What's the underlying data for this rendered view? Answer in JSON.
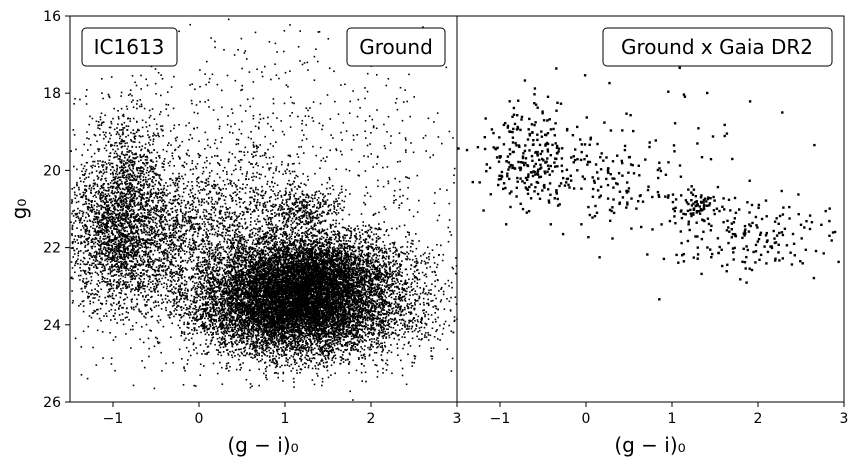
{
  "chart_data": [
    {
      "type": "scatter",
      "panel": "left",
      "tags": [
        "IC1613",
        "Ground"
      ],
      "xlabel": "(g − i)₀",
      "ylabel": "g₀",
      "xlim": [
        -1.5,
        3
      ],
      "ylim": [
        26,
        16
      ],
      "y_inverted": true,
      "xticks": [
        -1,
        0,
        1,
        2,
        3
      ],
      "yticks": [
        16,
        18,
        20,
        22,
        24,
        26
      ],
      "point_color": "#000000",
      "grid": false,
      "components": [
        {
          "id": "main_sequence_blue_plume",
          "x_center": -0.9,
          "y_center": 21.6,
          "x_spread": 0.35,
          "y_spread": 1.0,
          "n": 2600
        },
        {
          "id": "blue_bright_sequence",
          "x_center": -0.8,
          "y_center": 19.8,
          "x_spread": 0.22,
          "y_spread": 0.9,
          "n": 500
        },
        {
          "id": "red_giant_branch_lower",
          "x_center": 1.1,
          "y_center": 23.5,
          "x_spread": 0.55,
          "y_spread": 0.65,
          "n": 9000
        },
        {
          "id": "red_giant_branch_upper",
          "x_center": 1.35,
          "y_center": 22.6,
          "x_spread": 0.45,
          "y_spread": 0.55,
          "n": 3500
        },
        {
          "id": "red_clump",
          "x_center": 1.2,
          "y_center": 21.0,
          "x_spread": 0.2,
          "y_spread": 0.25,
          "n": 250
        },
        {
          "id": "intermediate_band",
          "x_center": 0.3,
          "y_center": 22.0,
          "x_spread": 0.6,
          "y_spread": 1.2,
          "n": 2200
        },
        {
          "id": "foreground_field",
          "x_center": 0.8,
          "y_center": 20.0,
          "x_spread": 1.4,
          "y_spread": 1.9,
          "n": 900
        },
        {
          "id": "red_tail",
          "x_center": 2.2,
          "y_center": 23.4,
          "x_spread": 0.45,
          "y_spread": 0.8,
          "n": 700
        }
      ]
    },
    {
      "type": "scatter",
      "panel": "right",
      "tags": [
        "Ground x Gaia DR2"
      ],
      "xlabel": "(g − i)₀",
      "ylabel": "",
      "xlim": [
        -1.5,
        3
      ],
      "ylim": [
        26,
        16
      ],
      "y_inverted": true,
      "xticks": [
        -1,
        0,
        1,
        2,
        3
      ],
      "yticks": [
        16,
        18,
        20,
        22,
        24,
        26
      ],
      "point_color": "#000000",
      "grid": false,
      "components": [
        {
          "id": "blue_bright_sequence",
          "x_center": -0.65,
          "y_center": 19.6,
          "x_spread": 0.3,
          "y_spread": 0.7,
          "n": 260
        },
        {
          "id": "yellow_band",
          "x_center": 0.4,
          "y_center": 20.3,
          "x_spread": 0.5,
          "y_spread": 0.5,
          "n": 120
        },
        {
          "id": "red_clump_area",
          "x_center": 1.25,
          "y_center": 20.9,
          "x_spread": 0.15,
          "y_spread": 0.18,
          "n": 80
        },
        {
          "id": "red_supergiant_slope",
          "x_center": 1.9,
          "y_center": 21.7,
          "x_spread": 0.5,
          "y_spread": 0.5,
          "n": 180
        },
        {
          "id": "sparse_field",
          "x_center": 0.8,
          "y_center": 19.5,
          "x_spread": 1.0,
          "y_spread": 0.9,
          "n": 60
        }
      ]
    }
  ]
}
